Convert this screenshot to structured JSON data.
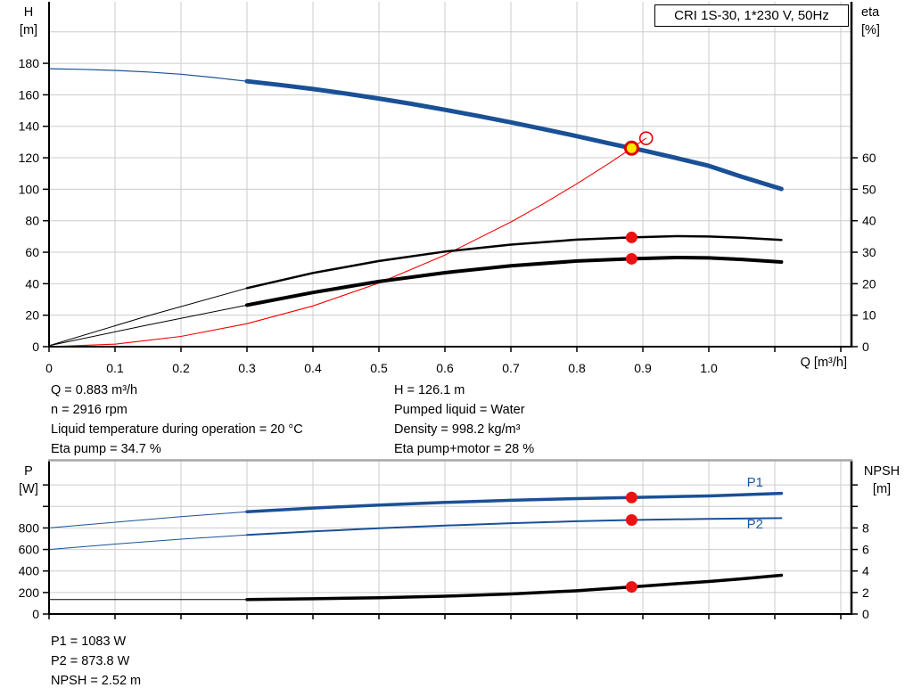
{
  "title_box": {
    "label": "CRI 1S-30, 1*230 V, 50Hz"
  },
  "info_top_left": {
    "lines": [
      "Q = 0.883 m³/h",
      "n = 2916 rpm",
      "Liquid temperature during operation = 20 °C",
      "Eta pump = 34.7 %"
    ]
  },
  "info_top_right": {
    "lines": [
      "H = 126.1 m",
      "Pumped liquid = Water",
      "Density = 998.2 kg/m³",
      "Eta pump+motor = 28 %"
    ]
  },
  "info_bottom": {
    "lines": [
      "P1 = 1083 W",
      "P2 = 873.8 W",
      "NPSH = 2.52 m"
    ]
  },
  "colors": {
    "blue": "#1a5096",
    "black": "#000000",
    "red": "#f40000",
    "dot_red": "#ee1111",
    "duty_fill": "#ffe800",
    "duty_ring": "#e00000",
    "grid": "#cccccc",
    "axis": "#000000",
    "label_blue": "#1c5aa0",
    "top_border_gray": "#a6a6a6"
  },
  "chart_data": [
    {
      "id": "hq",
      "type": "line",
      "title": "CRI 1S-30, 1*230 V, 50Hz",
      "x": {
        "label": "Q [m³/h]",
        "min": 0,
        "max": 1.2162,
        "tick_step": 0.1,
        "tick_count": 13,
        "tick_labels": [
          "0",
          "0.1",
          "0.2",
          "0.3",
          "0.4",
          "0.5",
          "0.6",
          "0.7",
          "0.8",
          "0.9",
          "1.0"
        ],
        "grid_to": 1.2,
        "show_tick_labels": true
      },
      "y_left": {
        "name": "H",
        "unit": "[m]",
        "min": 0,
        "max": 219.1,
        "tick_step": 20,
        "tick_count": 10,
        "tick_labels": [
          "0",
          "20",
          "40",
          "60",
          "80",
          "100",
          "120",
          "140",
          "160",
          "180"
        ],
        "grid_to": 200
      },
      "y_right": {
        "name": "eta",
        "unit": "[%]",
        "min": 0,
        "max": 109.55,
        "tick_step": 10,
        "tick_count": 7,
        "tick_labels": [
          "0",
          "10",
          "20",
          "30",
          "40",
          "50",
          "60"
        ]
      },
      "series": [
        {
          "name": "system-curve",
          "axis": "left",
          "color": "red",
          "segments": [
            {
              "width": 1.1,
              "points": [
                [
                  0,
                  0
                ],
                [
                  0.1,
                  1.6
                ],
                [
                  0.2,
                  6.5
                ],
                [
                  0.3,
                  14.6
                ],
                [
                  0.4,
                  25.9
                ],
                [
                  0.5,
                  40.4
                ],
                [
                  0.6,
                  58.2
                ],
                [
                  0.7,
                  79.2
                ],
                [
                  0.75,
                  91
                ],
                [
                  0.8,
                  103.5
                ],
                [
                  0.85,
                  116.8
                ],
                [
                  0.883,
                  126.1
                ],
                [
                  0.905,
                  132.4
                ]
              ]
            }
          ]
        },
        {
          "name": "eta-pump",
          "axis": "right",
          "color": "black",
          "segments": [
            {
              "width": 1,
              "points": [
                [
                  0,
                  0.3
                ],
                [
                  0.15,
                  9.8
                ],
                [
                  0.3,
                  18.6
                ]
              ]
            },
            {
              "width": 2.5,
              "points": [
                [
                  0.3,
                  18.6
                ],
                [
                  0.4,
                  23.4
                ],
                [
                  0.5,
                  27.2
                ],
                [
                  0.6,
                  30.2
                ],
                [
                  0.7,
                  32.4
                ],
                [
                  0.8,
                  34
                ],
                [
                  0.883,
                  34.7
                ],
                [
                  0.95,
                  35.1
                ],
                [
                  1.0,
                  35
                ],
                [
                  1.05,
                  34.6
                ],
                [
                  1.11,
                  33.9
                ]
              ]
            }
          ]
        },
        {
          "name": "eta-pump-motor",
          "axis": "right",
          "color": "black",
          "segments": [
            {
              "width": 1,
              "points": [
                [
                  0,
                  0.3
                ],
                [
                  0.15,
                  6.9
                ],
                [
                  0.3,
                  13.2
                ]
              ]
            },
            {
              "width": 4,
              "points": [
                [
                  0.3,
                  13.2
                ],
                [
                  0.4,
                  17.2
                ],
                [
                  0.5,
                  20.7
                ],
                [
                  0.6,
                  23.5
                ],
                [
                  0.7,
                  25.7
                ],
                [
                  0.8,
                  27.2
                ],
                [
                  0.883,
                  27.9
                ],
                [
                  0.95,
                  28.3
                ],
                [
                  1.0,
                  28.2
                ],
                [
                  1.05,
                  27.7
                ],
                [
                  1.11,
                  26.9
                ]
              ]
            }
          ]
        },
        {
          "name": "h-curve",
          "axis": "left",
          "color": "blue",
          "segments": [
            {
              "width": 1.2,
              "points": [
                [
                  0,
                  176.6
                ],
                [
                  0.05,
                  176.2
                ],
                [
                  0.1,
                  175.5
                ],
                [
                  0.15,
                  174.5
                ],
                [
                  0.2,
                  173.1
                ],
                [
                  0.25,
                  171
                ],
                [
                  0.3,
                  168.6
                ]
              ]
            },
            {
              "width": 5,
              "points": [
                [
                  0.3,
                  168.6
                ],
                [
                  0.35,
                  166.3
                ],
                [
                  0.4,
                  163.7
                ],
                [
                  0.45,
                  160.8
                ],
                [
                  0.5,
                  157.6
                ],
                [
                  0.55,
                  154.2
                ],
                [
                  0.6,
                  150.5
                ],
                [
                  0.65,
                  146.6
                ],
                [
                  0.7,
                  142.5
                ],
                [
                  0.75,
                  138.2
                ],
                [
                  0.8,
                  133.7
                ],
                [
                  0.85,
                  129
                ],
                [
                  0.883,
                  126.1
                ],
                [
                  0.9,
                  124.7
                ],
                [
                  0.95,
                  119.9
                ],
                [
                  1.0,
                  114.9
                ],
                [
                  1.05,
                  107.9
                ],
                [
                  1.11,
                  100.2
                ]
              ]
            }
          ]
        }
      ],
      "markers": [
        {
          "kind": "open",
          "x": 0.905,
          "y": 132.4,
          "axis": "left",
          "name": "requested-duty-point"
        },
        {
          "kind": "duty",
          "x": 0.883,
          "y": 126.1,
          "axis": "left",
          "name": "duty-point"
        },
        {
          "kind": "dot",
          "x": 0.883,
          "y": 34.7,
          "axis": "right",
          "name": "eta-pump-point"
        },
        {
          "kind": "dot",
          "x": 0.883,
          "y": 27.9,
          "axis": "right",
          "name": "eta-pump-motor-point"
        }
      ],
      "annotations": []
    },
    {
      "id": "power",
      "type": "line",
      "x": {
        "label": "",
        "min": 0,
        "max": 1.2162,
        "tick_step": 0.1,
        "tick_count": 13,
        "tick_labels": [],
        "grid_to": 1.2,
        "show_tick_labels": false
      },
      "y_left": {
        "name": "P",
        "unit": "[W]",
        "min": 0,
        "max": 1429,
        "tick_step": 200,
        "tick_count": 7,
        "tick_labels": [
          "0",
          "200",
          "400",
          "600",
          "800"
        ],
        "grid_to": 1200
      },
      "y_right": {
        "name": "NPSH",
        "unit": "[m]",
        "min": 0,
        "max": 14.29,
        "tick_step": 2,
        "tick_count": 7,
        "tick_labels": [
          "0",
          "2",
          "4",
          "6",
          "8"
        ]
      },
      "top_border": true,
      "series": [
        {
          "name": "npsh-curve",
          "axis": "right",
          "color": "black",
          "segments": [
            {
              "width": 1,
              "points": [
                [
                  0,
                  1.35
                ],
                [
                  0.3,
                  1.35
                ]
              ]
            },
            {
              "width": 3.5,
              "points": [
                [
                  0.3,
                  1.35
                ],
                [
                  0.4,
                  1.42
                ],
                [
                  0.5,
                  1.52
                ],
                [
                  0.6,
                  1.66
                ],
                [
                  0.7,
                  1.86
                ],
                [
                  0.8,
                  2.16
                ],
                [
                  0.883,
                  2.52
                ],
                [
                  0.95,
                  2.82
                ],
                [
                  1.0,
                  3.02
                ],
                [
                  1.05,
                  3.27
                ],
                [
                  1.11,
                  3.6
                ]
              ]
            }
          ]
        },
        {
          "name": "p2-curve",
          "axis": "left",
          "color": "blue",
          "segments": [
            {
              "width": 1,
              "points": [
                [
                  0,
                  600
                ],
                [
                  0.1,
                  650
                ],
                [
                  0.2,
                  696
                ],
                [
                  0.3,
                  735
                ]
              ]
            },
            {
              "width": 2,
              "points": [
                [
                  0.3,
                  735
                ],
                [
                  0.4,
                  768
                ],
                [
                  0.5,
                  797
                ],
                [
                  0.6,
                  822
                ],
                [
                  0.7,
                  844
                ],
                [
                  0.8,
                  862
                ],
                [
                  0.883,
                  873.8
                ],
                [
                  1.0,
                  885
                ],
                [
                  1.11,
                  891
                ]
              ]
            }
          ]
        },
        {
          "name": "p1-curve",
          "axis": "left",
          "color": "blue",
          "segments": [
            {
              "width": 1,
              "points": [
                [
                  0,
                  800
                ],
                [
                  0.1,
                  853
                ],
                [
                  0.2,
                  905
                ],
                [
                  0.3,
                  950
                ]
              ]
            },
            {
              "width": 3.5,
              "points": [
                [
                  0.3,
                  950
                ],
                [
                  0.4,
                  985
                ],
                [
                  0.5,
                  1013
                ],
                [
                  0.6,
                  1037
                ],
                [
                  0.7,
                  1057
                ],
                [
                  0.8,
                  1073
                ],
                [
                  0.883,
                  1083
                ],
                [
                  1.0,
                  1098
                ],
                [
                  1.11,
                  1122
                ]
              ]
            }
          ]
        }
      ],
      "markers": [
        {
          "kind": "dot",
          "x": 0.883,
          "y": 1083,
          "axis": "left",
          "name": "p1-point"
        },
        {
          "kind": "dot",
          "x": 0.883,
          "y": 873.8,
          "axis": "left",
          "name": "p2-point"
        },
        {
          "kind": "dot",
          "x": 0.883,
          "y": 2.52,
          "axis": "right",
          "name": "npsh-point"
        }
      ],
      "annotations": [
        {
          "text": "P1",
          "x": 1.07,
          "y": 1185,
          "axis": "left",
          "name": "p1-series-label"
        },
        {
          "text": "P2",
          "x": 1.07,
          "y": 795,
          "axis": "left",
          "name": "p2-series-label"
        }
      ]
    }
  ]
}
